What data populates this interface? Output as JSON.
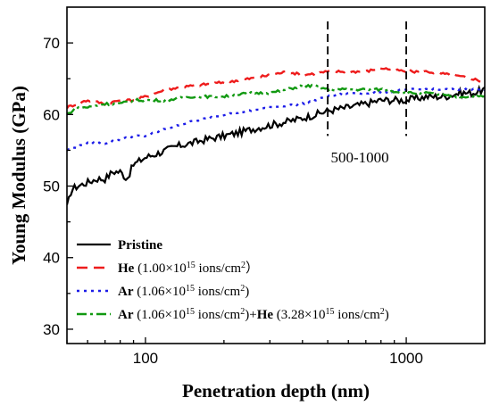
{
  "chart_data": {
    "type": "line",
    "title": "",
    "xlabel": "Penetration depth (nm)",
    "ylabel": "Young Modulus (GPa)",
    "xscale": "log",
    "xlim": [
      50,
      2000
    ],
    "ylim": [
      28,
      75
    ],
    "x_ticks": [
      100,
      1000
    ],
    "x_tick_labels": [
      "100",
      "1000"
    ],
    "y_ticks": [
      30,
      40,
      50,
      60,
      70
    ],
    "y_tick_labels": [
      "30",
      "40",
      "50",
      "60",
      "70"
    ],
    "grid": false,
    "legend_position": "bottom-left",
    "annotation": {
      "text": "500-1000",
      "x_range": [
        500,
        1000
      ]
    },
    "series": [
      {
        "name": "Pristine",
        "legend_parts": [
          {
            "text": "Pristine",
            "bold": true
          }
        ],
        "color": "#000000",
        "dash": "solid",
        "x": [
          50,
          52,
          55,
          60,
          65,
          70,
          75,
          80,
          85,
          90,
          100,
          110,
          120,
          130,
          150,
          170,
          200,
          230,
          260,
          300,
          350,
          400,
          450,
          500,
          600,
          700,
          800,
          900,
          1000,
          1200,
          1400,
          1600,
          1800,
          2000
        ],
        "y": [
          47,
          49.5,
          50,
          50.5,
          51,
          51,
          52,
          52,
          51,
          53,
          54,
          54.5,
          55,
          55.5,
          56,
          56.5,
          57,
          57.5,
          58,
          58.5,
          59,
          59.5,
          60,
          60.5,
          61,
          61.5,
          62,
          62,
          62,
          62.5,
          62.5,
          63,
          63,
          63.5
        ]
      },
      {
        "name": "He (1.00×10¹⁵ ions/cm²)",
        "legend_parts": [
          {
            "text": "He",
            "bold": true
          },
          {
            "text": " (1.00×10"
          },
          {
            "text": "15",
            "sup": true
          },
          {
            "text": " ions/cm"
          },
          {
            "text": "2",
            "sup": true
          },
          {
            "text": "）"
          }
        ],
        "color": "#ee1c1c",
        "dash": "12,7",
        "x": [
          50,
          60,
          70,
          80,
          90,
          100,
          120,
          150,
          200,
          250,
          300,
          350,
          400,
          500,
          600,
          700,
          800,
          1000,
          1200,
          1500,
          1800,
          2000
        ],
        "y": [
          61,
          62,
          61.5,
          62,
          62,
          62.5,
          63.5,
          64,
          64.5,
          65,
          65.5,
          66,
          65.5,
          66,
          66,
          66,
          66.5,
          66,
          66,
          65.5,
          65,
          64.5
        ]
      },
      {
        "name": "Ar (1.06×10¹⁵ ions/cm²)",
        "legend_parts": [
          {
            "text": "Ar",
            "bold": true
          },
          {
            "text": " (1.06×10"
          },
          {
            "text": "15",
            "sup": true
          },
          {
            "text": " ions/cm"
          },
          {
            "text": "2",
            "sup": true
          },
          {
            "text": ")"
          }
        ],
        "color": "#1c1ce8",
        "dash": "3,5",
        "x": [
          50,
          55,
          60,
          70,
          80,
          90,
          100,
          120,
          150,
          200,
          250,
          300,
          400,
          500,
          600,
          700,
          800,
          1000,
          1200,
          1500,
          2000
        ],
        "y": [
          55,
          55.5,
          56,
          56,
          56.5,
          57,
          57,
          58,
          59,
          60,
          60.5,
          61,
          61.5,
          62.5,
          63,
          63,
          63,
          63.5,
          63.5,
          63.5,
          63.5
        ]
      },
      {
        "name": "Ar (1.06×10¹⁵ ions/cm²)+He (3.28×10¹⁵ ions/cm²)",
        "legend_parts": [
          {
            "text": "Ar",
            "bold": true
          },
          {
            "text": " (1.06×10"
          },
          {
            "text": "15",
            "sup": true
          },
          {
            "text": " ions/cm"
          },
          {
            "text": "2",
            "sup": true
          },
          {
            "text": ")+"
          },
          {
            "text": "He",
            "bold": true
          },
          {
            "text": " (3.28×10"
          },
          {
            "text": "15",
            "sup": true
          },
          {
            "text": " ions/cm"
          },
          {
            "text": "2",
            "sup": true
          },
          {
            "text": ")"
          }
        ],
        "color": "#119911",
        "dash": "11,4,3,4",
        "x": [
          50,
          55,
          60,
          70,
          80,
          90,
          100,
          120,
          150,
          200,
          250,
          300,
          350,
          400,
          450,
          500,
          600,
          700,
          800,
          1000,
          1200,
          1500,
          2000
        ],
        "y": [
          60,
          61,
          61,
          61.5,
          61.5,
          62,
          62,
          62,
          62.5,
          62.5,
          63,
          63,
          63.5,
          64,
          64,
          63.5,
          63.5,
          63.5,
          63.5,
          63,
          63,
          62.5,
          62.5
        ]
      }
    ]
  }
}
